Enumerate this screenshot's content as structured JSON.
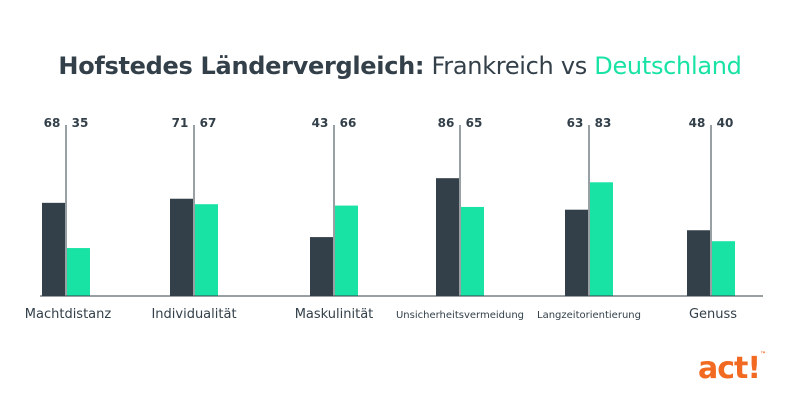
{
  "title": {
    "bold_part": "Hofstedes Ländervergleich:",
    "country_a": "Frankreich",
    "connector": "vs",
    "country_b": "Deutschland"
  },
  "chart_data": {
    "type": "bar",
    "categories": [
      "Machtdistanz",
      "Individualität",
      "Maskulinität",
      "Unsicherheitsvermeidung",
      "Langzeitorientierung",
      "Genuss"
    ],
    "series": [
      {
        "name": "Frankreich",
        "values": [
          68,
          71,
          43,
          86,
          63,
          48
        ],
        "color": "#33404a"
      },
      {
        "name": "Deutschland",
        "values": [
          35,
          67,
          66,
          65,
          83,
          40
        ],
        "color": "#19e3a4"
      }
    ],
    "ylim": [
      0,
      100
    ],
    "grid": false,
    "legend": "title"
  },
  "logo": {
    "text": "act!",
    "trademark": "™",
    "color": "#f26a21"
  }
}
